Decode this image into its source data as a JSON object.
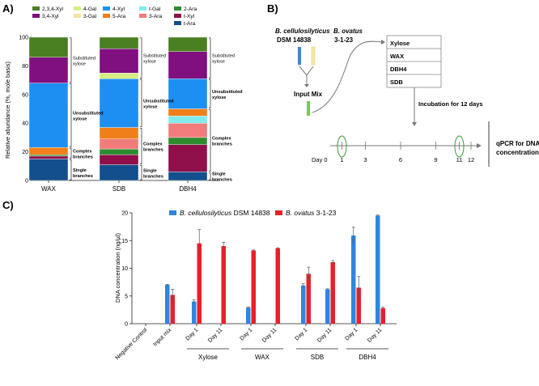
{
  "chart_data": [
    {
      "id": "A",
      "type": "bar",
      "stacked": true,
      "panel_label": "A)",
      "ylabel": "Relative abundance (%, mole basis)",
      "ylim": [
        0,
        100
      ],
      "yticks": [
        "0",
        "20",
        "40",
        "60",
        "80",
        "100"
      ],
      "categories": [
        "WAX",
        "SDB",
        "DBH4"
      ],
      "legend": [
        {
          "name": "2,3,4-Xyl",
          "color": "#4a7f22"
        },
        {
          "name": "4-Gal",
          "color": "#d6ee82"
        },
        {
          "name": "4-Xyl",
          "color": "#1e8ff2"
        },
        {
          "name": "t-Gal",
          "color": "#82ecec"
        },
        {
          "name": "2-Ara",
          "color": "#2e8b2e"
        },
        {
          "name": "3,4-Xyl",
          "color": "#800f80"
        },
        {
          "name": "3-Gal",
          "color": "#f2e49a"
        },
        {
          "name": "5-Ara",
          "color": "#f07f1a"
        },
        {
          "name": "3-Ara",
          "color": "#f07c7c"
        },
        {
          "name": "t-Xyl",
          "color": "#8f0f4a"
        },
        {
          "name": "t-Ara",
          "color": "#134f8c"
        }
      ],
      "series": [
        {
          "name": "t-Ara",
          "values": [
            15,
            11,
            6
          ]
        },
        {
          "name": "t-Xyl",
          "values": [
            2,
            7,
            19
          ]
        },
        {
          "name": "2-Ara",
          "values": [
            1,
            4,
            5
          ]
        },
        {
          "name": "3-Ara",
          "values": [
            0,
            7,
            10
          ]
        },
        {
          "name": "t-Gal",
          "values": [
            0,
            0,
            5
          ]
        },
        {
          "name": "5-Ara",
          "values": [
            5,
            8,
            5
          ]
        },
        {
          "name": "3-Gal",
          "values": [
            0,
            0,
            0
          ]
        },
        {
          "name": "4-Xyl",
          "values": [
            45,
            34,
            21
          ]
        },
        {
          "name": "4-Gal",
          "values": [
            0,
            4,
            0
          ]
        },
        {
          "name": "3,4-Xyl",
          "values": [
            18,
            17,
            19
          ]
        },
        {
          "name": "2,3,4-Xyl",
          "values": [
            14,
            8,
            10
          ]
        }
      ],
      "bracket_labels": [
        [
          "Substituted",
          "xylose"
        ],
        [
          "Unsubstituted",
          "xylose"
        ],
        [
          "Complex",
          "branches"
        ],
        [
          "Single",
          "branches"
        ]
      ]
    },
    {
      "id": "C",
      "type": "bar",
      "panel_label": "C)",
      "ylabel": "DNA concentration (ng/µl)",
      "ylim": [
        0,
        20
      ],
      "yticks": [
        "0",
        "5",
        "10",
        "15",
        "20"
      ],
      "categories": [
        "Negative Control",
        "Input mix",
        "Day 1",
        "Day 11",
        "Day 1",
        "Day 11",
        "Day 1",
        "Day 11",
        "Day 1",
        "Day 11"
      ],
      "groups": [
        "Xylose",
        "WAX",
        "SDB",
        "DBH4"
      ],
      "series": [
        {
          "name": "B. cellulosilyticus DSM 14838",
          "italic": "B. cellulosilyticus",
          "rest": " DSM 14838",
          "color": "#2e86de",
          "values": [
            0,
            7.0,
            4.0,
            0,
            2.9,
            0,
            6.9,
            6.2,
            15.9,
            19.5
          ],
          "errors": [
            0,
            0.1,
            0.3,
            0,
            0.1,
            0,
            0.3,
            0.1,
            1.5,
            0.1
          ]
        },
        {
          "name": "B. ovatus 3-1-23",
          "italic": "B. ovatus",
          "rest": " 3-1-23",
          "color": "#e8202a",
          "values": [
            0,
            5.2,
            14.5,
            14.0,
            13.2,
            13.6,
            9.0,
            11.1,
            6.5,
            2.8
          ],
          "errors": [
            0,
            1.0,
            2.5,
            0.7,
            0.1,
            0.1,
            1.2,
            0.3,
            2.0,
            0.2
          ]
        }
      ]
    }
  ],
  "diagram": {
    "panel_label": "B)",
    "strain1_name": "B. cellulosilyticus",
    "strain1_id": "DSM 14838",
    "strain2_name": "B. ovatus",
    "strain2_id": "3-1-23",
    "input_mix": "Input Mix",
    "substrates": [
      "Xylose",
      "WAX",
      "DBH4",
      "SDB"
    ],
    "incubation": "Incubation for 12 days",
    "day_prefix": "Day 0",
    "days": [
      "1",
      "3",
      "6",
      "9",
      "11",
      "12"
    ],
    "qpcr_line1": "qPCR for DNA",
    "qpcr_line2": "concentration"
  }
}
